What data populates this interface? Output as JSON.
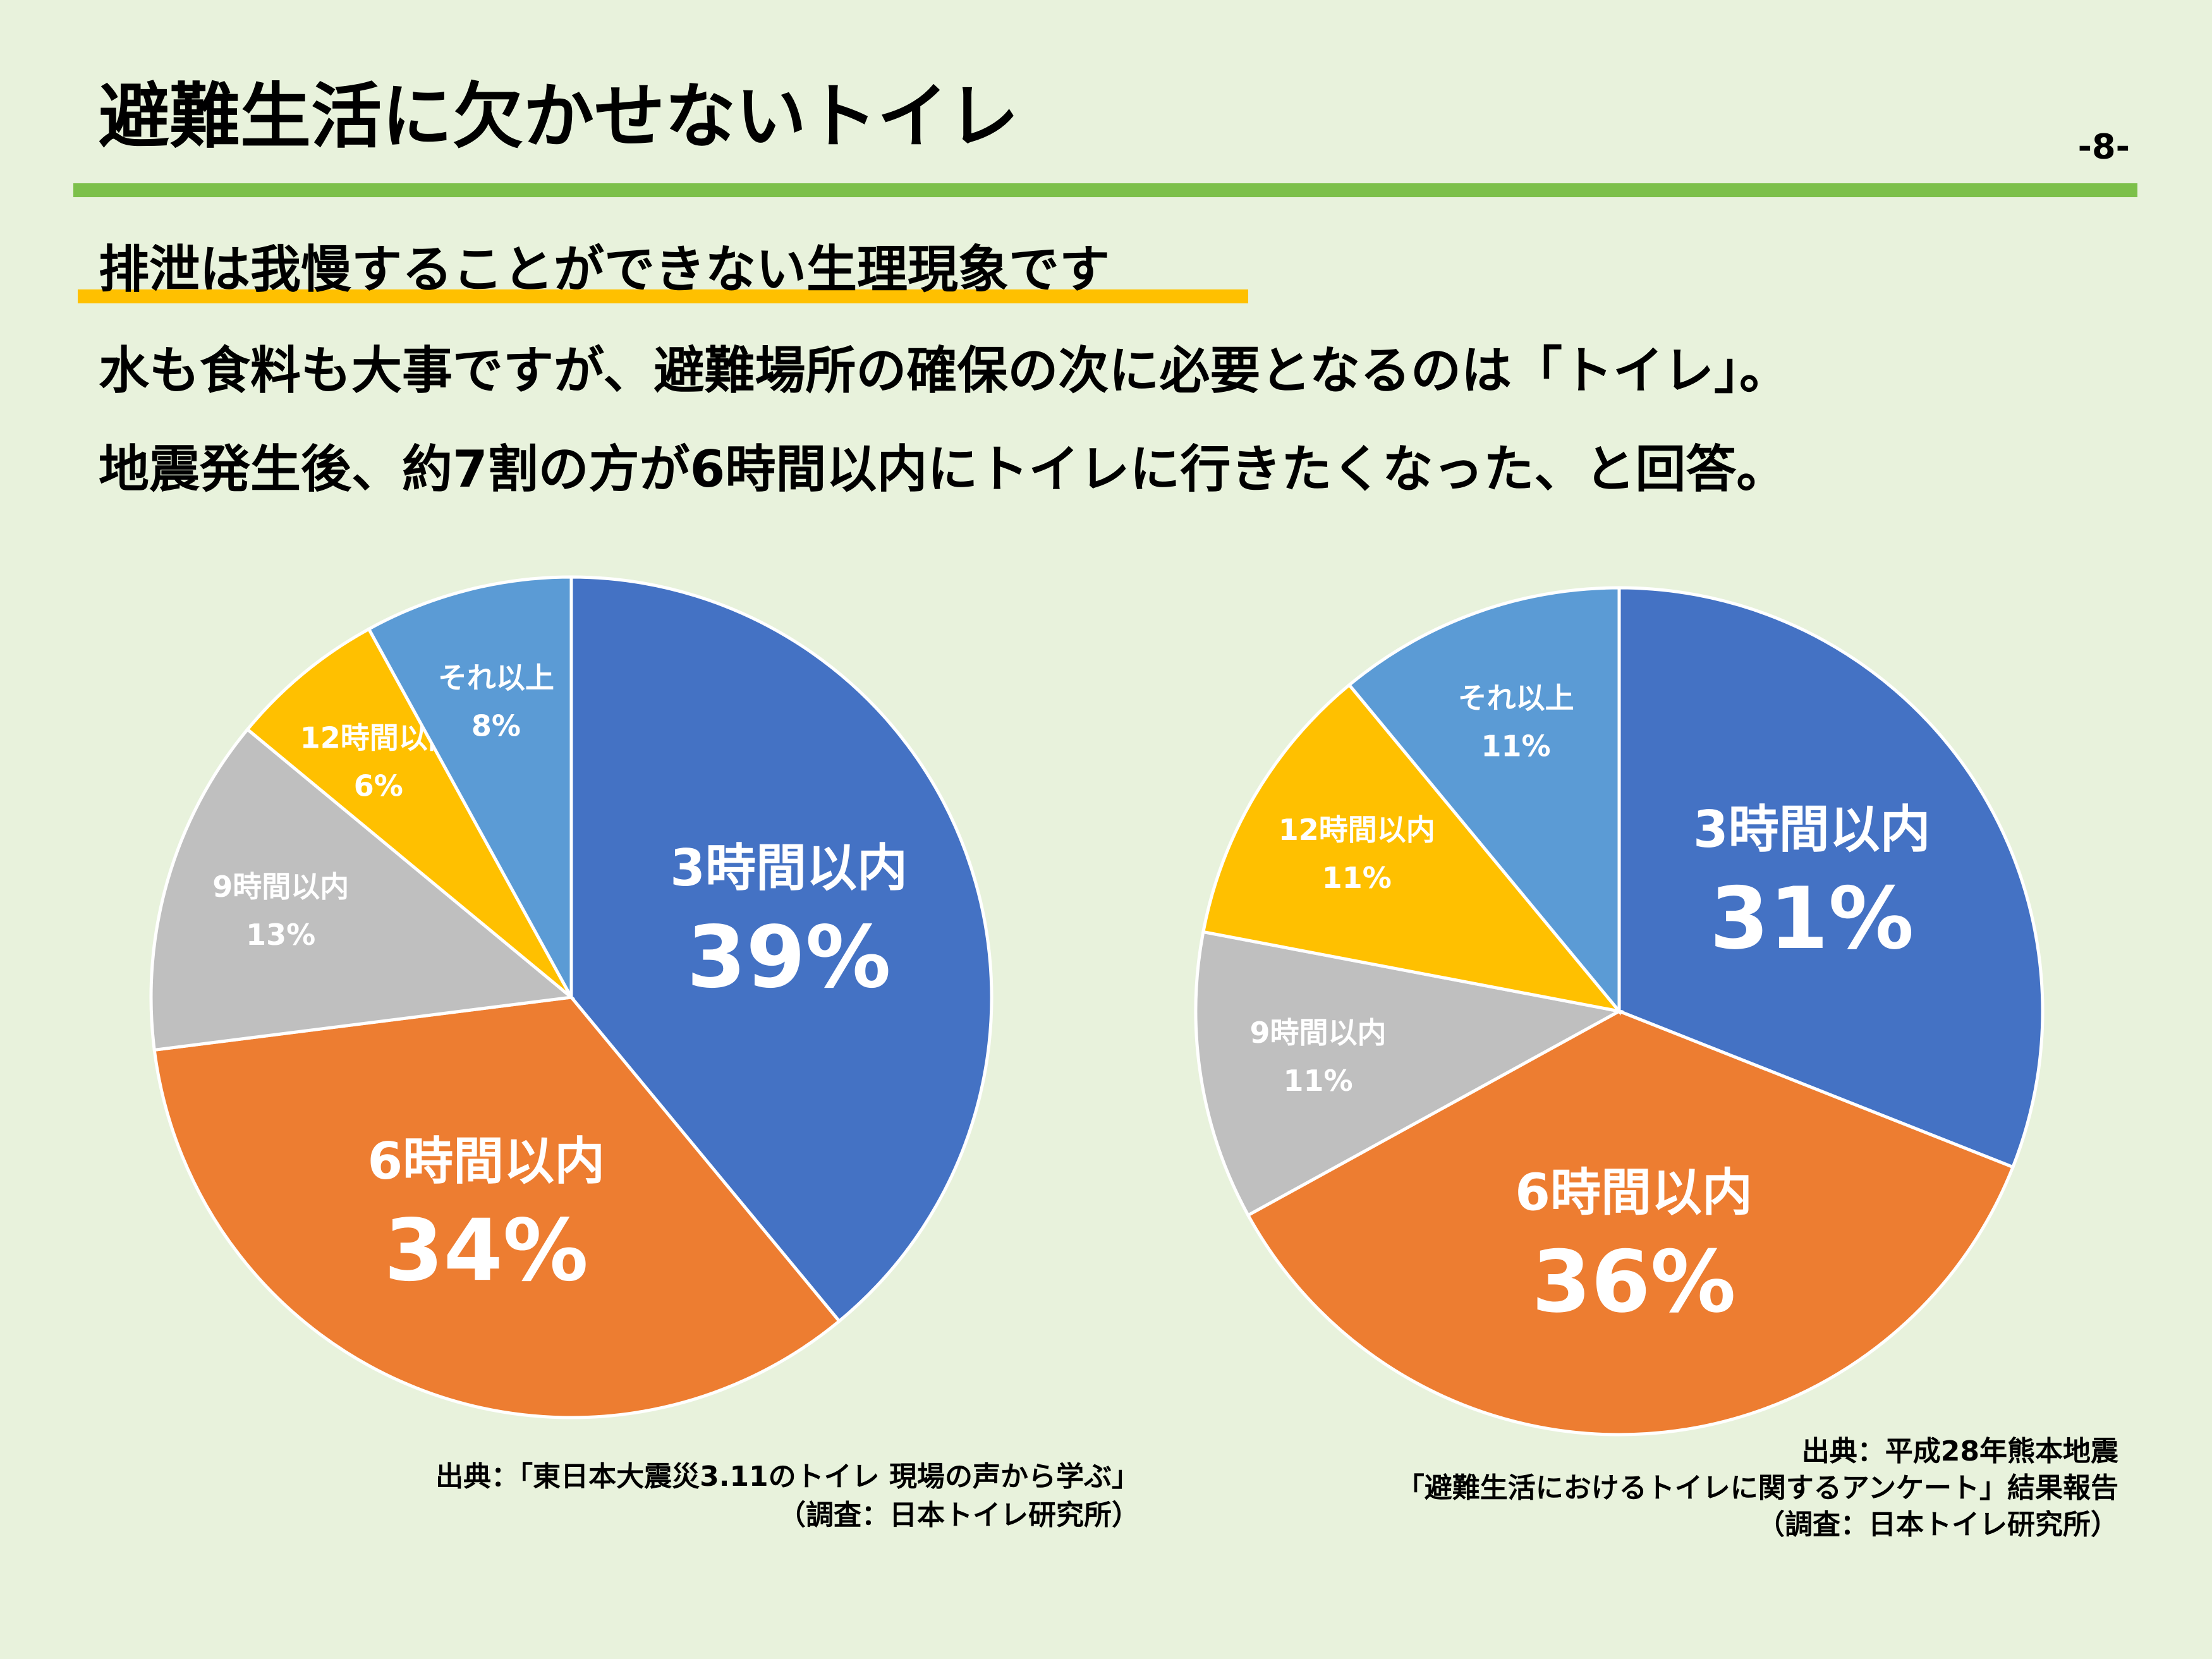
{
  "title": "避難生活に欠かせないトイレ",
  "page_number": "-8-",
  "subtitle": "排泄は我慢することができない生理現象です",
  "lines": [
    "水も食料も大事ですが、避難場所の確保の次に必要となるのは「トイレ」。",
    "地震発生後、約7割の方が6時間以内にトイレに行きたくなった、と回答。"
  ],
  "chart_data": [
    {
      "type": "pie",
      "categories": [
        "3時間以内",
        "6時間以内",
        "9時間以内",
        "12時間以内",
        "それ以上"
      ],
      "values": [
        39,
        34,
        13,
        6,
        8
      ],
      "value_labels": [
        "39%",
        "34%",
        "13%",
        "6%",
        "8%"
      ],
      "colors": [
        "#4472c4",
        "#ed7d31",
        "#bfbfbf",
        "#ffc000",
        "#5b9bd5"
      ],
      "source": [
        "出典：「東日本大震災3.11のトイレ 現場の声から学ぶ」",
        "（調査：日本トイレ研究所）"
      ]
    },
    {
      "type": "pie",
      "categories": [
        "3時間以内",
        "6時間以内",
        "9時間以内",
        "12時間以内",
        "それ以上"
      ],
      "values": [
        31,
        36,
        11,
        11,
        11
      ],
      "value_labels": [
        "31%",
        "36%",
        "11%",
        "11%",
        "11%"
      ],
      "colors": [
        "#4472c4",
        "#ed7d31",
        "#bfbfbf",
        "#ffc000",
        "#5b9bd5"
      ],
      "source": [
        "出典：平成28年熊本地震",
        "「避難生活におけるトイレに関するアンケート」結果報告",
        "（調査：日本トイレ研究所）"
      ]
    }
  ]
}
